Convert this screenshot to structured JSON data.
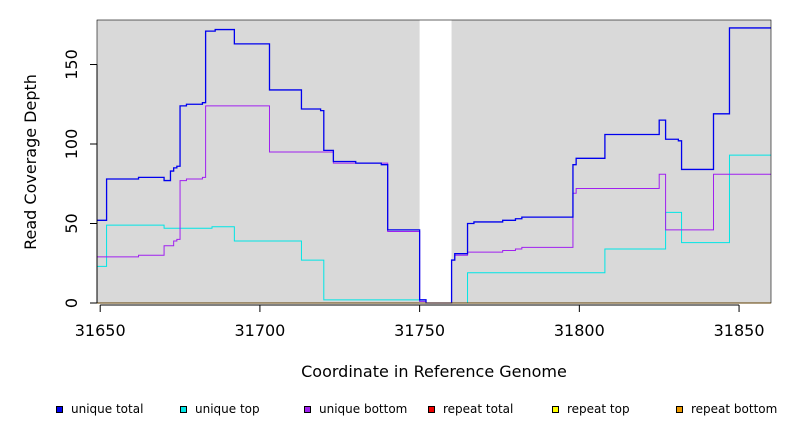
{
  "chart_data": {
    "type": "line",
    "xlabel": "Coordinate in Reference Genome",
    "ylabel": "Read Coverage Depth",
    "xlim": [
      31649,
      31860
    ],
    "ylim": [
      0,
      178
    ],
    "x_ticks": [
      31650,
      31700,
      31750,
      31800,
      31850
    ],
    "y_ticks": [
      0,
      50,
      100,
      150
    ],
    "background": "#d9d9d9",
    "gap_region": [
      31750,
      31760
    ],
    "legend_position": "bottom",
    "series": [
      {
        "name": "unique total",
        "color": "#0000ee",
        "points": [
          [
            31649,
            52
          ],
          [
            31652,
            52
          ],
          [
            31652,
            78
          ],
          [
            31662,
            78
          ],
          [
            31662,
            79
          ],
          [
            31670,
            79
          ],
          [
            31670,
            77
          ],
          [
            31672,
            77
          ],
          [
            31672,
            83
          ],
          [
            31673,
            83
          ],
          [
            31673,
            85
          ],
          [
            31674,
            85
          ],
          [
            31674,
            86
          ],
          [
            31675,
            86
          ],
          [
            31675,
            124
          ],
          [
            31677,
            124
          ],
          [
            31677,
            125
          ],
          [
            31682,
            125
          ],
          [
            31682,
            126
          ],
          [
            31683,
            126
          ],
          [
            31683,
            171
          ],
          [
            31686,
            171
          ],
          [
            31686,
            172
          ],
          [
            31692,
            172
          ],
          [
            31692,
            163
          ],
          [
            31703,
            163
          ],
          [
            31703,
            134
          ],
          [
            31713,
            134
          ],
          [
            31713,
            122
          ],
          [
            31719,
            122
          ],
          [
            31719,
            121
          ],
          [
            31720,
            121
          ],
          [
            31720,
            96
          ],
          [
            31723,
            96
          ],
          [
            31723,
            89
          ],
          [
            31730,
            89
          ],
          [
            31730,
            88
          ],
          [
            31738,
            88
          ],
          [
            31738,
            87
          ],
          [
            31740,
            87
          ],
          [
            31740,
            46
          ],
          [
            31750,
            46
          ],
          [
            31750,
            2
          ],
          [
            31752,
            2
          ],
          [
            31752,
            0
          ],
          [
            31760,
            0
          ],
          [
            31760,
            27
          ],
          [
            31761,
            27
          ],
          [
            31761,
            31
          ],
          [
            31765,
            31
          ],
          [
            31765,
            50
          ],
          [
            31767,
            50
          ],
          [
            31767,
            51
          ],
          [
            31776,
            51
          ],
          [
            31776,
            52
          ],
          [
            31780,
            52
          ],
          [
            31780,
            53
          ],
          [
            31782,
            53
          ],
          [
            31782,
            54
          ],
          [
            31791,
            54
          ],
          [
            31791,
            54
          ],
          [
            31798,
            54
          ],
          [
            31798,
            87
          ],
          [
            31799,
            87
          ],
          [
            31799,
            91
          ],
          [
            31808,
            91
          ],
          [
            31808,
            106
          ],
          [
            31825,
            106
          ],
          [
            31825,
            115
          ],
          [
            31827,
            115
          ],
          [
            31827,
            103
          ],
          [
            31831,
            103
          ],
          [
            31831,
            102
          ],
          [
            31832,
            102
          ],
          [
            31832,
            84
          ],
          [
            31842,
            84
          ],
          [
            31842,
            119
          ],
          [
            31847,
            119
          ],
          [
            31847,
            173
          ],
          [
            31860,
            173
          ]
        ]
      },
      {
        "name": "unique top",
        "color": "#00e5e5",
        "points": [
          [
            31649,
            23
          ],
          [
            31652,
            23
          ],
          [
            31652,
            49
          ],
          [
            31670,
            49
          ],
          [
            31670,
            47
          ],
          [
            31685,
            47
          ],
          [
            31685,
            48
          ],
          [
            31692,
            48
          ],
          [
            31692,
            39
          ],
          [
            31713,
            39
          ],
          [
            31713,
            27
          ],
          [
            31720,
            27
          ],
          [
            31720,
            2
          ],
          [
            31750,
            2
          ],
          [
            31750,
            1
          ],
          [
            31752,
            1
          ],
          [
            31752,
            0
          ],
          [
            31765,
            0
          ],
          [
            31765,
            19
          ],
          [
            31808,
            19
          ],
          [
            31808,
            34
          ],
          [
            31827,
            34
          ],
          [
            31827,
            57
          ],
          [
            31832,
            57
          ],
          [
            31832,
            38
          ],
          [
            31847,
            38
          ],
          [
            31847,
            93
          ],
          [
            31860,
            93
          ]
        ]
      },
      {
        "name": "unique bottom",
        "color": "#a020f0",
        "points": [
          [
            31649,
            29
          ],
          [
            31662,
            29
          ],
          [
            31662,
            30
          ],
          [
            31670,
            30
          ],
          [
            31670,
            36
          ],
          [
            31673,
            36
          ],
          [
            31673,
            39
          ],
          [
            31674,
            39
          ],
          [
            31674,
            40
          ],
          [
            31675,
            40
          ],
          [
            31675,
            77
          ],
          [
            31677,
            77
          ],
          [
            31677,
            78
          ],
          [
            31682,
            78
          ],
          [
            31682,
            79
          ],
          [
            31683,
            79
          ],
          [
            31683,
            124
          ],
          [
            31703,
            124
          ],
          [
            31703,
            95
          ],
          [
            31723,
            95
          ],
          [
            31723,
            88
          ],
          [
            31740,
            88
          ],
          [
            31740,
            45
          ],
          [
            31750,
            45
          ],
          [
            31750,
            1
          ],
          [
            31752,
            1
          ],
          [
            31752,
            0
          ],
          [
            31760,
            0
          ],
          [
            31760,
            27
          ],
          [
            31761,
            27
          ],
          [
            31761,
            30
          ],
          [
            31765,
            30
          ],
          [
            31765,
            32
          ],
          [
            31776,
            32
          ],
          [
            31776,
            33
          ],
          [
            31780,
            33
          ],
          [
            31780,
            34
          ],
          [
            31782,
            34
          ],
          [
            31782,
            35
          ],
          [
            31798,
            35
          ],
          [
            31798,
            69
          ],
          [
            31799,
            69
          ],
          [
            31799,
            72
          ],
          [
            31825,
            72
          ],
          [
            31825,
            81
          ],
          [
            31827,
            81
          ],
          [
            31827,
            46
          ],
          [
            31842,
            46
          ],
          [
            31842,
            81
          ],
          [
            31860,
            81
          ]
        ]
      },
      {
        "name": "repeat total",
        "color": "#ee0000",
        "points": [
          [
            31649,
            0
          ],
          [
            31860,
            0
          ]
        ]
      },
      {
        "name": "repeat top",
        "color": "#ffff00",
        "points": [
          [
            31649,
            0
          ],
          [
            31860,
            0
          ]
        ]
      },
      {
        "name": "repeat bottom",
        "color": "#ee9a00",
        "points": [
          [
            31649,
            0
          ],
          [
            31860,
            0
          ]
        ]
      }
    ]
  }
}
